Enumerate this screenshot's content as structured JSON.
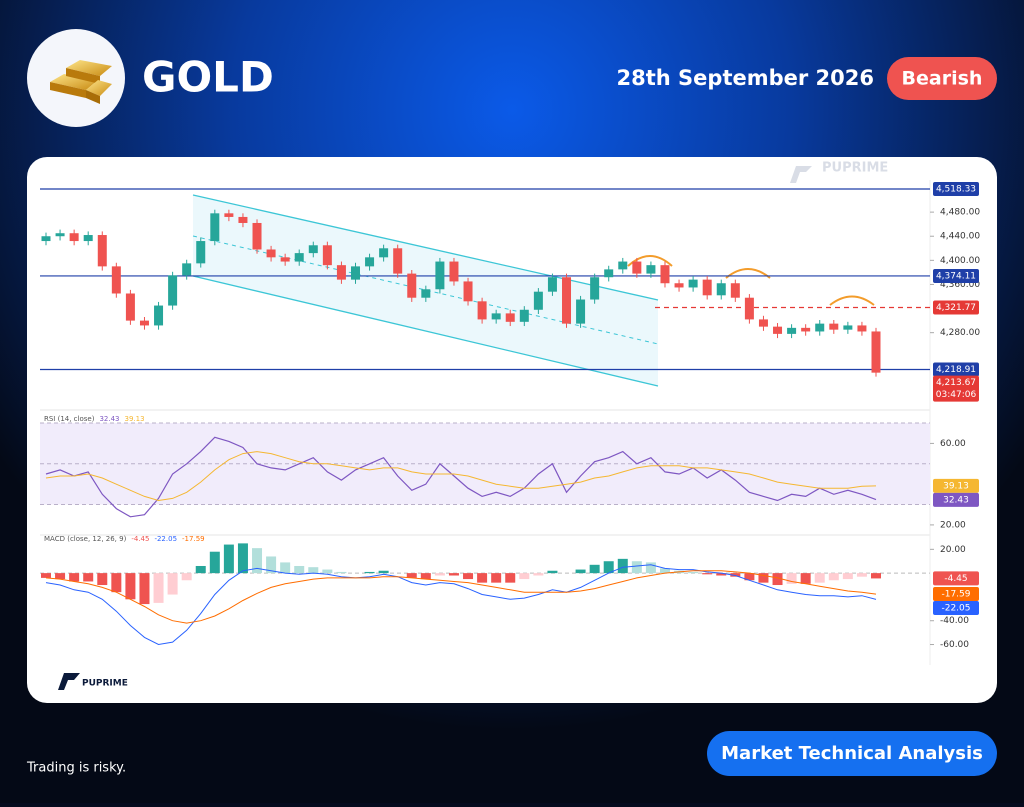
{
  "header": {
    "title": "GOLD",
    "date": "28th September 2026",
    "badge": "Bearish"
  },
  "watermark": "PUPRIME",
  "logo": "PUPRIME",
  "footer": {
    "disclaimer": "Trading is risky.",
    "button": "Market Technical Analysis"
  },
  "chart_data": [
    {
      "type": "candlestick",
      "open": [
        4432,
        4440,
        4445,
        4432,
        4442,
        4390,
        4345,
        4300,
        4292,
        4325,
        4375,
        4395,
        4432,
        4478,
        4472,
        4462,
        4418,
        4405,
        4398,
        4412,
        4425,
        4392,
        4368,
        4390,
        4405,
        4420,
        4378,
        4338,
        4352,
        4398,
        4365,
        4332,
        4302,
        4312,
        4298,
        4318,
        4348,
        4372,
        4295,
        4335,
        4372,
        4385,
        4398,
        4378,
        4392,
        4362,
        4355,
        4368,
        4342,
        4362,
        4338,
        4302,
        4290,
        4278,
        4288,
        4282,
        4295,
        4285,
        4292,
        4282
      ],
      "high": [
        4446,
        4451,
        4451,
        4448,
        4448,
        4396,
        4351,
        4306,
        4331,
        4381,
        4401,
        4438,
        4484,
        4484,
        4478,
        4468,
        4424,
        4411,
        4418,
        4431,
        4431,
        4398,
        4396,
        4411,
        4426,
        4426,
        4384,
        4358,
        4404,
        4404,
        4371,
        4338,
        4318,
        4318,
        4324,
        4354,
        4378,
        4378,
        4341,
        4378,
        4391,
        4404,
        4404,
        4398,
        4398,
        4368,
        4374,
        4374,
        4368,
        4368,
        4344,
        4308,
        4296,
        4294,
        4294,
        4301,
        4301,
        4298,
        4298,
        4288
      ],
      "low": [
        4425,
        4433,
        4425,
        4425,
        4383,
        4338,
        4293,
        4285,
        4285,
        4318,
        4368,
        4388,
        4425,
        4465,
        4455,
        4411,
        4398,
        4391,
        4391,
        4405,
        4385,
        4361,
        4361,
        4383,
        4398,
        4371,
        4331,
        4331,
        4345,
        4358,
        4325,
        4295,
        4295,
        4291,
        4291,
        4311,
        4341,
        4288,
        4288,
        4328,
        4365,
        4378,
        4371,
        4371,
        4355,
        4348,
        4348,
        4335,
        4335,
        4331,
        4295,
        4283,
        4271,
        4271,
        4275,
        4275,
        4278,
        4278,
        4275,
        4207
      ],
      "close": [
        4440,
        4445,
        4432,
        4442,
        4390,
        4345,
        4300,
        4292,
        4325,
        4375,
        4395,
        4432,
        4478,
        4472,
        4462,
        4418,
        4405,
        4398,
        4412,
        4425,
        4392,
        4368,
        4390,
        4405,
        4420,
        4378,
        4338,
        4352,
        4398,
        4365,
        4332,
        4302,
        4312,
        4298,
        4318,
        4348,
        4372,
        4295,
        4335,
        4372,
        4385,
        4398,
        4378,
        4392,
        4362,
        4355,
        4368,
        4342,
        4362,
        4338,
        4302,
        4290,
        4278,
        4288,
        4282,
        4295,
        4285,
        4292,
        4282,
        4213.67
      ],
      "close_label": "4,213.67",
      "countdown": "03:47:06",
      "last_color": "#e53935",
      "up_color": "#26a69a",
      "down_color": "#ef5350",
      "ylim": [
        4160,
        4525
      ],
      "yticks": [
        {
          "value": 4360,
          "label": "4,360.00"
        },
        {
          "value": 4400,
          "label": "4,400.00"
        },
        {
          "value": 4440,
          "label": "4,440.00"
        },
        {
          "value": 4480,
          "label": "4,480.00"
        },
        {
          "value": 4280,
          "label": "4,280.00"
        }
      ],
      "levels": [
        {
          "value": 4518.33,
          "label": "4,518.33",
          "color": "#1f3fa8",
          "style": "solid"
        },
        {
          "value": 4374.11,
          "label": "4,374.11",
          "color": "#1f3fa8",
          "style": "solid"
        },
        {
          "value": 4321.77,
          "label": "4,321.77",
          "color": "#e53935",
          "style": "dashed"
        },
        {
          "value": 4218.91,
          "label": "4,218.91",
          "color": "#1f3fa8",
          "style": "solid"
        }
      ]
    },
    {
      "type": "line",
      "title": "RSI (14, close)",
      "ylim": [
        17.5,
        71
      ],
      "yticks": [
        {
          "value": 60,
          "label": "60.00"
        },
        {
          "value": 20,
          "label": "20.00"
        }
      ],
      "bands": [
        70,
        50,
        30
      ],
      "series": [
        {
          "color": "#7e57c2",
          "values": [
            45,
            47,
            44,
            46,
            35,
            28,
            24,
            25,
            33,
            45,
            50,
            56,
            63,
            61,
            58,
            50,
            48,
            47,
            50,
            53,
            46,
            42,
            47,
            50,
            53,
            44,
            37,
            40,
            50,
            44,
            38,
            34,
            36,
            34,
            38,
            45,
            50,
            36,
            44,
            51,
            53,
            56,
            50,
            53,
            46,
            45,
            48,
            43,
            47,
            42,
            36,
            34,
            32,
            35,
            34,
            38,
            35,
            37,
            35,
            32.43
          ]
        },
        {
          "color": "#f5b731",
          "values": [
            43,
            44,
            44,
            45,
            43,
            40,
            37,
            34,
            32,
            33,
            36,
            41,
            47,
            52,
            55,
            56,
            55,
            53,
            51,
            50,
            50,
            49,
            48,
            47,
            48,
            48,
            46,
            45,
            45,
            45,
            44,
            42,
            40,
            39,
            38,
            38,
            39,
            40,
            41,
            43,
            44,
            46,
            48,
            49,
            49,
            49,
            48,
            48,
            47,
            46,
            45,
            43,
            41,
            40,
            39,
            38,
            38,
            38,
            39,
            39.13
          ]
        }
      ]
    },
    {
      "type": "combo",
      "title": "MACD (close, 12, 26, 9)",
      "ylim": [
        -73,
        27
      ],
      "yticks": [
        {
          "value": 20,
          "label": "20.00"
        },
        {
          "value": -40,
          "label": "-40.00"
        },
        {
          "value": -60,
          "label": "-60.00"
        }
      ],
      "series": [
        {
          "kind": "bar",
          "color": "#ef5350",
          "values": [
            -4,
            -5,
            -7,
            -7,
            -10,
            -16,
            -22,
            -26,
            -25,
            -18,
            -6,
            6,
            18,
            24,
            25,
            21,
            14,
            9,
            6,
            5,
            3,
            1,
            0,
            1,
            2,
            0,
            -4,
            -5,
            -2,
            -2,
            -5,
            -8,
            -8,
            -8,
            -5,
            -2,
            2,
            0,
            3,
            7,
            10,
            12,
            10,
            9,
            4,
            2,
            1,
            -1,
            -2,
            -3,
            -6,
            -8,
            -10,
            -9,
            -9,
            -8,
            -6,
            -5,
            -3,
            -4.45
          ]
        },
        {
          "kind": "line",
          "color": "#2962ff",
          "values": [
            -8,
            -10,
            -14,
            -16,
            -22,
            -32,
            -44,
            -54,
            -60,
            -58,
            -48,
            -34,
            -18,
            -6,
            2,
            4,
            2,
            0,
            -1,
            0,
            -1,
            -3,
            -4,
            -3,
            -1,
            -3,
            -8,
            -10,
            -8,
            -9,
            -13,
            -18,
            -20,
            -22,
            -21,
            -18,
            -14,
            -16,
            -12,
            -6,
            0,
            5,
            6,
            7,
            4,
            3,
            3,
            1,
            0,
            -2,
            -6,
            -10,
            -14,
            -16,
            -18,
            -19,
            -19,
            -20,
            -19,
            -22.05
          ]
        },
        {
          "kind": "line",
          "color": "#ff6d00",
          "values": [
            -4,
            -5,
            -7,
            -9,
            -12,
            -16,
            -22,
            -28,
            -35,
            -40,
            -42,
            -40,
            -36,
            -30,
            -23,
            -17,
            -12,
            -9,
            -7,
            -5,
            -4,
            -4,
            -4,
            -4,
            -3,
            -3,
            -4,
            -5,
            -6,
            -7,
            -8,
            -10,
            -12,
            -14,
            -16,
            -16,
            -16,
            -16,
            -15,
            -13,
            -10,
            -7,
            -4,
            -2,
            0,
            1,
            2,
            2,
            2,
            1,
            0,
            -2,
            -4,
            -7,
            -9,
            -11,
            -13,
            -15,
            -16,
            -17.59
          ]
        }
      ]
    }
  ]
}
